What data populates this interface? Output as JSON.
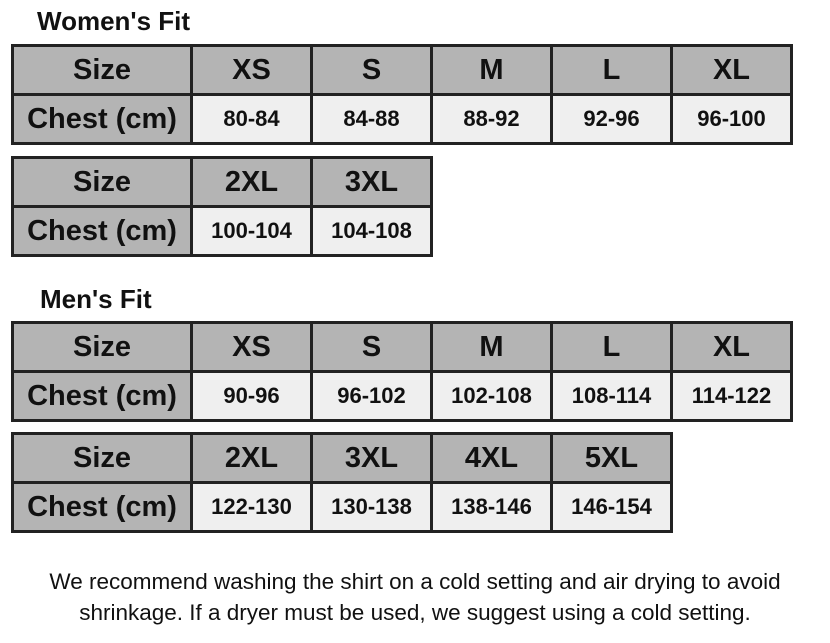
{
  "sections": [
    {
      "title": "Women's Fit",
      "tables": [
        {
          "header_label": "Size",
          "row_label": "Chest (cm)",
          "sizes": [
            "XS",
            "S",
            "M",
            "L",
            "XL"
          ],
          "chest": [
            "80-84",
            "84-88",
            "88-92",
            "92-96",
            "96-100"
          ]
        },
        {
          "header_label": "Size",
          "row_label": "Chest (cm)",
          "sizes": [
            "2XL",
            "3XL"
          ],
          "chest": [
            "100-104",
            "104-108"
          ]
        }
      ]
    },
    {
      "title": "Men's Fit",
      "tables": [
        {
          "header_label": "Size",
          "row_label": "Chest (cm)",
          "sizes": [
            "XS",
            "S",
            "M",
            "L",
            "XL"
          ],
          "chest": [
            "90-96",
            "96-102",
            "102-108",
            "108-114",
            "114-122"
          ]
        },
        {
          "header_label": "Size",
          "row_label": "Chest (cm)",
          "sizes": [
            "2XL",
            "3XL",
            "4XL",
            "5XL"
          ],
          "chest": [
            "122-130",
            "130-138",
            "138-146",
            "146-154"
          ]
        }
      ]
    }
  ],
  "note": "We recommend washing the shirt on a cold setting and air drying to avoid shrinkage. If a dryer must be used, we suggest using a cold setting.",
  "colors": {
    "header_bg": "#b4b4b4",
    "cell_bg": "#efefef",
    "border": "#222222"
  }
}
